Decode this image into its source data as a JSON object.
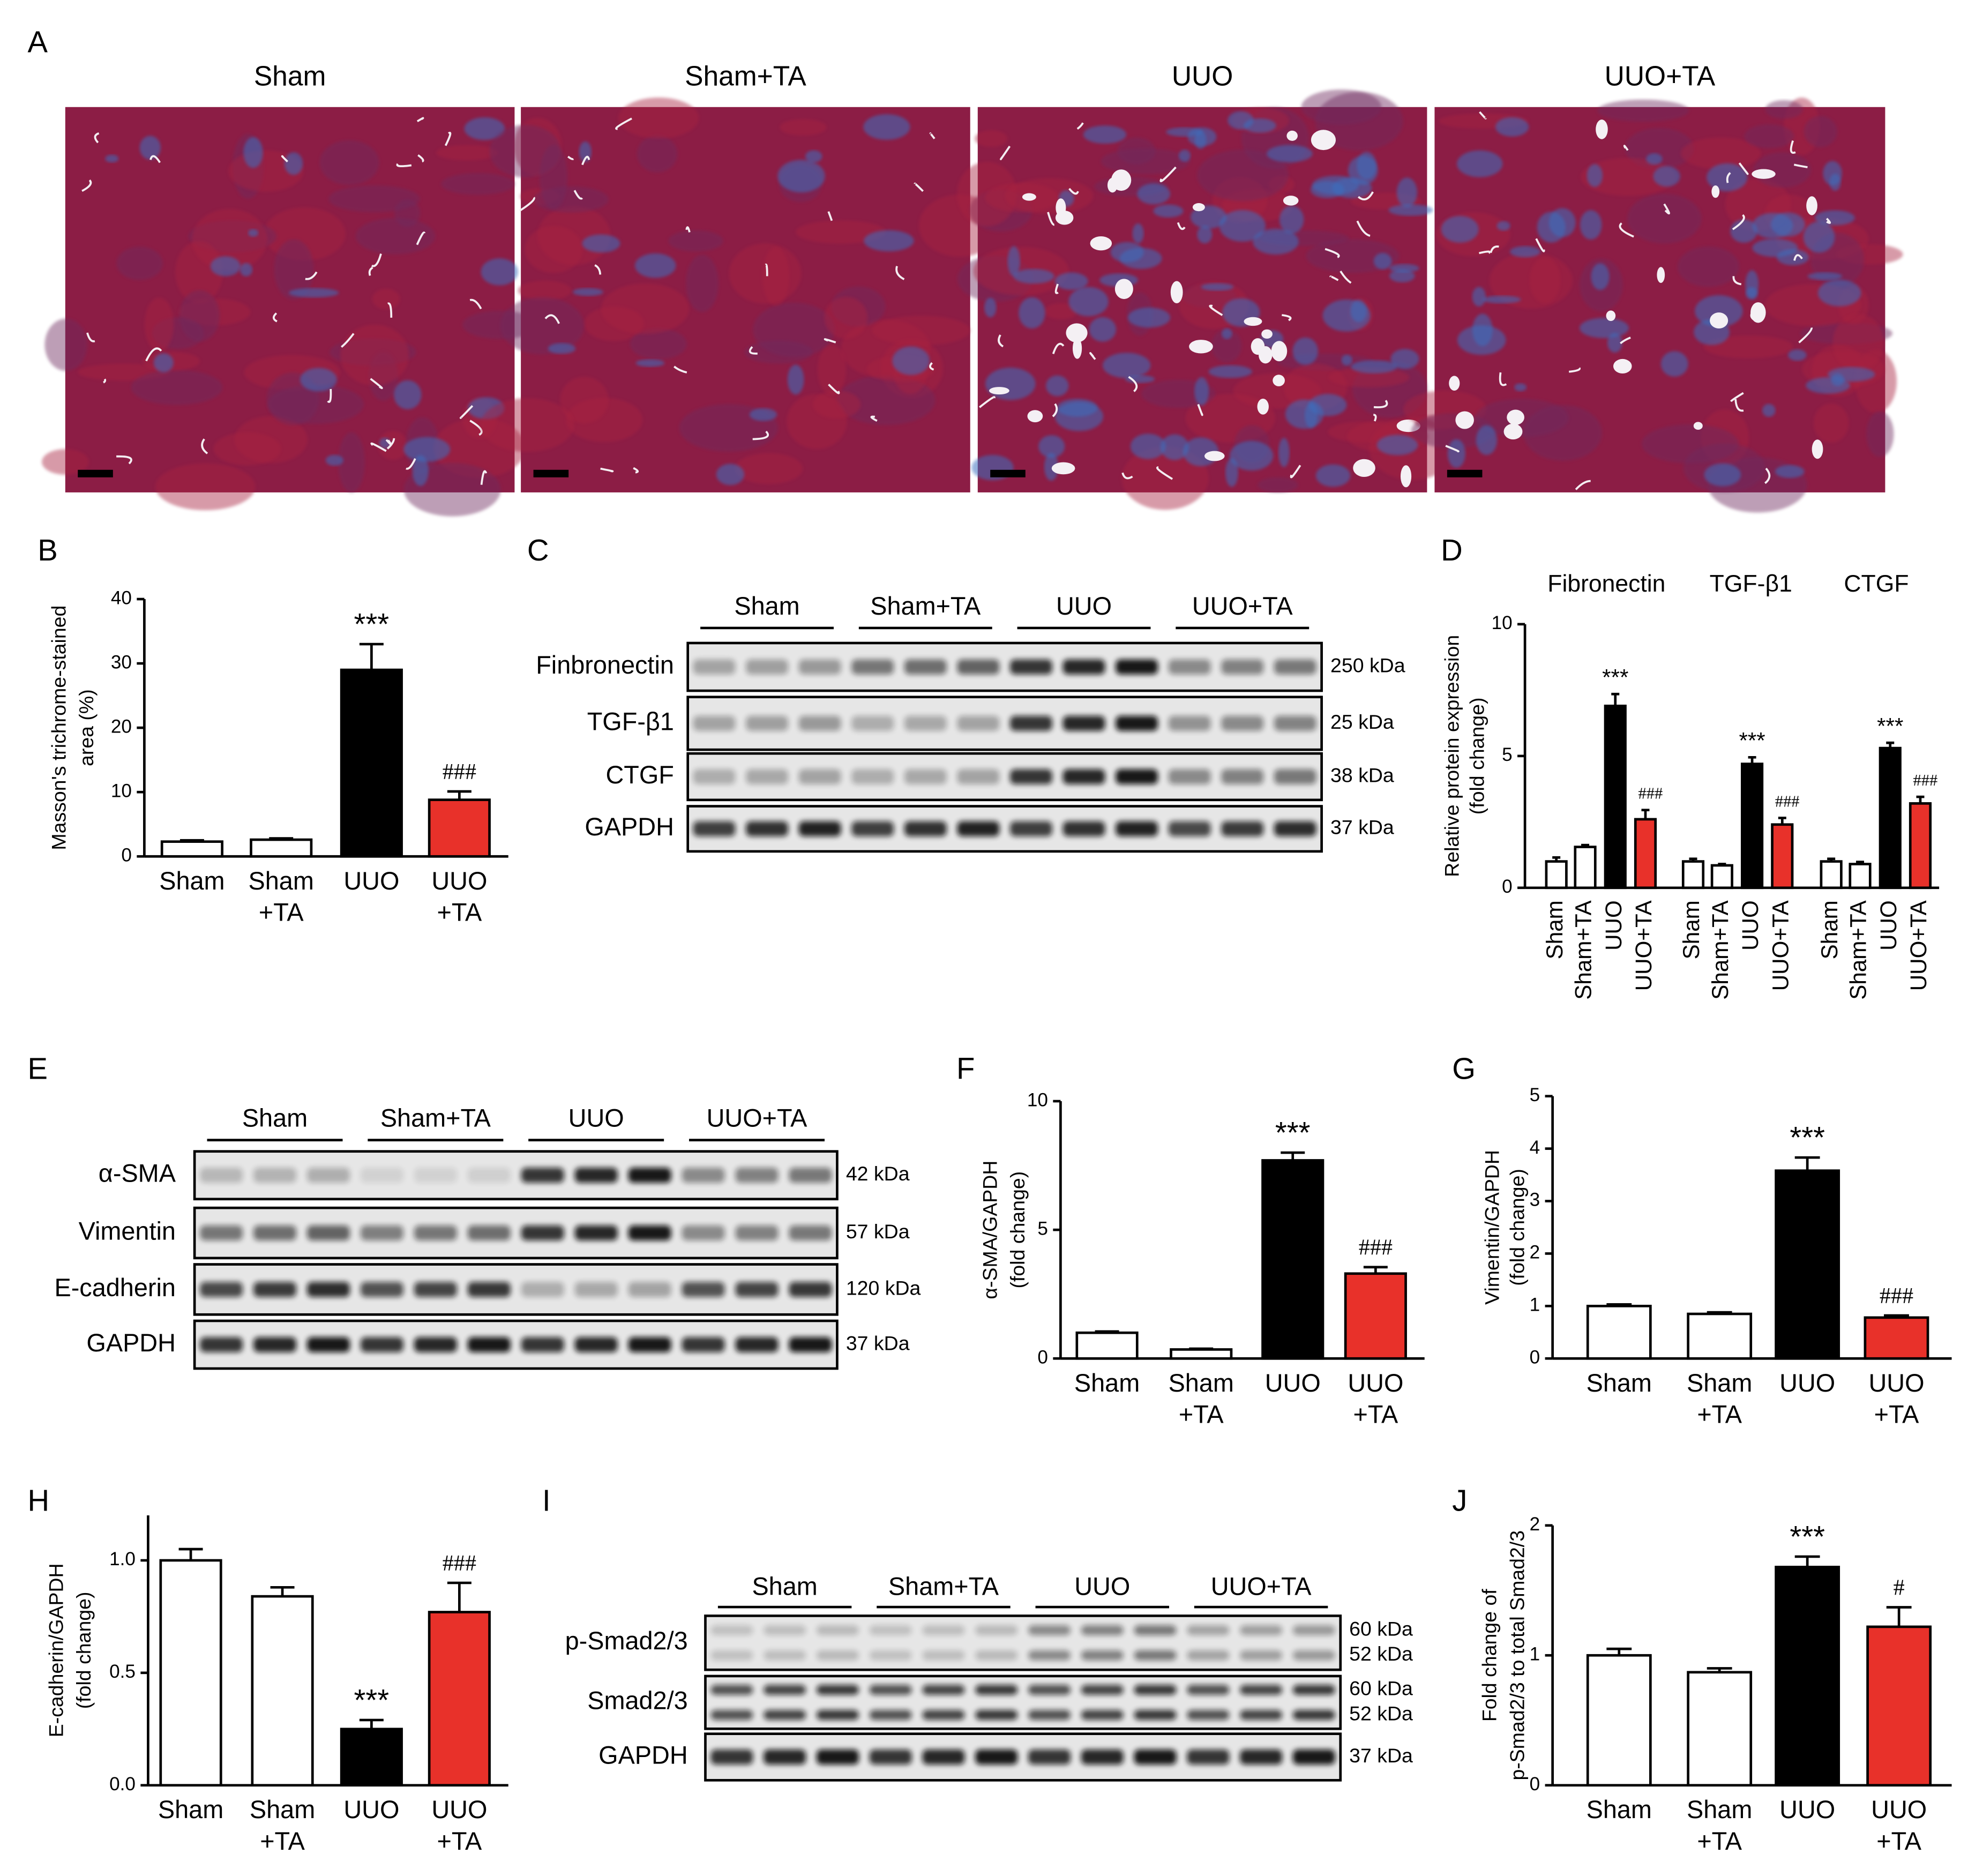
{
  "panel_labels": [
    "A",
    "B",
    "C",
    "D",
    "E",
    "F",
    "G",
    "H",
    "I",
    "J"
  ],
  "histology": {
    "titles": [
      "Sham",
      "Sham+TA",
      "UUO",
      "UUO+TA"
    ]
  },
  "blots": [
    {
      "groups": [
        "Sham",
        "Sham+TA",
        "UUO",
        "UUO+TA"
      ],
      "rows": [
        {
          "name": "Finbronectin",
          "sizes": [
            "250 kDa"
          ]
        },
        {
          "name": "TGF-β1",
          "sizes": [
            "25 kDa"
          ]
        },
        {
          "name": "CTGF",
          "sizes": [
            "38 kDa"
          ]
        },
        {
          "name": "GAPDH",
          "sizes": [
            "37 kDa"
          ]
        }
      ]
    },
    {
      "groups": [
        "Sham",
        "Sham+TA",
        "UUO",
        "UUO+TA"
      ],
      "rows": [
        {
          "name": "α-SMA",
          "sizes": [
            "42 kDa"
          ]
        },
        {
          "name": "Vimentin",
          "sizes": [
            "57 kDa"
          ]
        },
        {
          "name": "E-cadherin",
          "sizes": [
            "120 kDa"
          ]
        },
        {
          "name": "GAPDH",
          "sizes": [
            "37 kDa"
          ]
        }
      ]
    },
    {
      "groups": [
        "Sham",
        "Sham+TA",
        "UUO",
        "UUO+TA"
      ],
      "rows": [
        {
          "name": "p-Smad2/3",
          "sizes": [
            "60 kDa",
            "52 kDa"
          ]
        },
        {
          "name": "Smad2/3",
          "sizes": [
            "60 kDa",
            "52 kDa"
          ]
        },
        {
          "name": "GAPDH",
          "sizes": [
            "37 kDa"
          ]
        }
      ]
    }
  ],
  "chart_data": [
    {
      "type": "bar",
      "ylabel": [
        "Masson's trichrome-stained",
        "area (%)"
      ],
      "categories": [
        [
          "Sham"
        ],
        [
          "Sham",
          "+TA"
        ],
        [
          "UUO"
        ],
        [
          "UUO",
          "+TA"
        ]
      ],
      "values": [
        2.3,
        2.6,
        29,
        8.8
      ],
      "errors": [
        0.2,
        0.2,
        4,
        1.3
      ],
      "colors": [
        "#ffffff",
        "#ffffff",
        "#000000",
        "#e8312a"
      ],
      "ylim": [
        0,
        40
      ],
      "yticks": [
        0,
        10,
        20,
        30,
        40
      ],
      "annotations": [
        {
          "index": 2,
          "text": "***"
        },
        {
          "index": 3,
          "text": "###"
        }
      ]
    },
    {
      "type": "grouped_bar",
      "ylabel": [
        "Relative protein expression",
        "(fold change)"
      ],
      "categories": [
        "Sham",
        "Sham+TA",
        "UUO",
        "UUO+TA"
      ],
      "colors": [
        "#ffffff",
        "#ffffff",
        "#000000",
        "#e8312a"
      ],
      "groups": [
        {
          "name": "Fibronectin",
          "values": [
            1.0,
            1.55,
            6.9,
            2.6
          ],
          "errors": [
            0.15,
            0.07,
            0.45,
            0.35
          ],
          "annotations": [
            {
              "index": 2,
              "text": "***"
            },
            {
              "index": 3,
              "text": "###"
            }
          ]
        },
        {
          "name": "TGF-β1",
          "values": [
            1.0,
            0.85,
            4.7,
            2.4
          ],
          "errors": [
            0.1,
            0.05,
            0.25,
            0.25
          ],
          "annotations": [
            {
              "index": 2,
              "text": "***"
            },
            {
              "index": 3,
              "text": "###"
            }
          ]
        },
        {
          "name": "CTGF",
          "values": [
            1.0,
            0.9,
            5.3,
            3.2
          ],
          "errors": [
            0.1,
            0.08,
            0.2,
            0.25
          ],
          "annotations": [
            {
              "index": 2,
              "text": "***"
            },
            {
              "index": 3,
              "text": "###"
            }
          ]
        }
      ],
      "ylim": [
        0,
        10
      ],
      "yticks": [
        0,
        5,
        10
      ]
    },
    {
      "type": "bar",
      "ylabel": [
        "α-SMA/GAPDH",
        "(fold change)"
      ],
      "categories": [
        [
          "Sham"
        ],
        [
          "Sham",
          "+TA"
        ],
        [
          "UUO"
        ],
        [
          "UUO",
          "+TA"
        ]
      ],
      "values": [
        1.0,
        0.35,
        7.7,
        3.3
      ],
      "errors": [
        0.05,
        0.03,
        0.3,
        0.25
      ],
      "colors": [
        "#ffffff",
        "#ffffff",
        "#000000",
        "#e8312a"
      ],
      "ylim": [
        0,
        10
      ],
      "yticks": [
        0,
        5,
        10
      ],
      "annotations": [
        {
          "index": 2,
          "text": "***"
        },
        {
          "index": 3,
          "text": "###"
        }
      ]
    },
    {
      "type": "bar",
      "ylabel": [
        "Vimentin/GAPDH",
        "(fold change)"
      ],
      "categories": [
        [
          "Sham"
        ],
        [
          "Sham",
          "+TA"
        ],
        [
          "UUO"
        ],
        [
          "UUO",
          "+TA"
        ]
      ],
      "values": [
        1.0,
        0.85,
        3.58,
        0.78
      ],
      "errors": [
        0.03,
        0.03,
        0.25,
        0.04
      ],
      "colors": [
        "#ffffff",
        "#ffffff",
        "#000000",
        "#e8312a"
      ],
      "ylim": [
        0,
        5
      ],
      "yticks": [
        0,
        1,
        2,
        3,
        4,
        5
      ],
      "annotations": [
        {
          "index": 2,
          "text": "***"
        },
        {
          "index": 3,
          "text": "###"
        }
      ]
    },
    {
      "type": "bar",
      "ylabel": [
        "E-cadherin/GAPDH",
        "(fold change)"
      ],
      "categories": [
        [
          "Sham"
        ],
        [
          "Sham",
          "+TA"
        ],
        [
          "UUO"
        ],
        [
          "UUO",
          "+TA"
        ]
      ],
      "values": [
        1.0,
        0.84,
        0.25,
        0.77
      ],
      "errors": [
        0.05,
        0.04,
        0.04,
        0.13
      ],
      "colors": [
        "#ffffff",
        "#ffffff",
        "#000000",
        "#e8312a"
      ],
      "ylim": [
        0,
        1.2
      ],
      "yticks": [
        {
          "value": 0,
          "label": "0.0"
        },
        {
          "value": 0.5,
          "label": "0.5"
        },
        {
          "value": 1,
          "label": "1.0"
        }
      ],
      "annotations": [
        {
          "index": 2,
          "text": "***"
        },
        {
          "index": 3,
          "text": "###"
        }
      ]
    },
    {
      "type": "bar",
      "ylabel": [
        "Fold change of",
        "p-Smad2/3 to total Smad2/3"
      ],
      "categories": [
        [
          "Sham"
        ],
        [
          "Sham",
          "+TA"
        ],
        [
          "UUO"
        ],
        [
          "UUO",
          "+TA"
        ]
      ],
      "values": [
        1.0,
        0.87,
        1.68,
        1.22
      ],
      "errors": [
        0.05,
        0.03,
        0.08,
        0.15
      ],
      "colors": [
        "#ffffff",
        "#ffffff",
        "#000000",
        "#e8312a"
      ],
      "ylim": [
        0,
        2
      ],
      "yticks": [
        0,
        1,
        2
      ],
      "annotations": [
        {
          "index": 2,
          "text": "***"
        },
        {
          "index": 3,
          "text": "#"
        }
      ]
    }
  ]
}
